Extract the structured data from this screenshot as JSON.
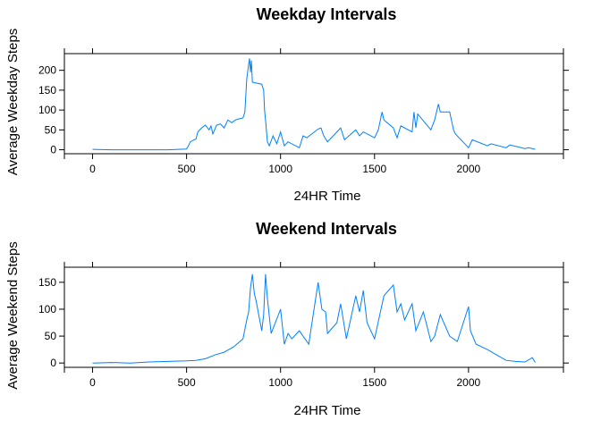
{
  "chart_data": [
    {
      "type": "line",
      "title": "Weekday Intervals",
      "xlabel": "24HR Time",
      "ylabel": "Average Weekday Steps",
      "xlim": [
        -150,
        2505
      ],
      "ylim": [
        -10,
        242
      ],
      "xticks": [
        0,
        500,
        1000,
        1500,
        2000
      ],
      "yticks": [
        0,
        50,
        100,
        150,
        200
      ],
      "line_color": "#0080ff",
      "grid": false,
      "series": [
        {
          "x": [
            0,
            100,
            200,
            300,
            400,
            500,
            510,
            520,
            540,
            550,
            560,
            580,
            600,
            620,
            630,
            640,
            660,
            680,
            700,
            720,
            740,
            760,
            780,
            800,
            810,
            820,
            830,
            835,
            840,
            845,
            850,
            900,
            910,
            915,
            920,
            930,
            940,
            960,
            980,
            1000,
            1020,
            1040,
            1100,
            1120,
            1140,
            1200,
            1215,
            1230,
            1250,
            1300,
            1320,
            1340,
            1400,
            1420,
            1440,
            1500,
            1520,
            1540,
            1550,
            1600,
            1620,
            1640,
            1700,
            1710,
            1720,
            1730,
            1800,
            1820,
            1840,
            1850,
            1900,
            1920,
            1930,
            2000,
            2020,
            2100,
            2120,
            2200,
            2220,
            2300,
            2320,
            2355
          ],
          "y": [
            1,
            0,
            0,
            0,
            0,
            2,
            10,
            20,
            25,
            27,
            45,
            55,
            62,
            50,
            60,
            40,
            62,
            65,
            55,
            75,
            68,
            75,
            78,
            80,
            95,
            178,
            215,
            230,
            195,
            225,
            170,
            165,
            150,
            100,
            75,
            20,
            10,
            35,
            15,
            45,
            10,
            20,
            5,
            35,
            30,
            52,
            55,
            35,
            20,
            45,
            55,
            25,
            50,
            35,
            45,
            30,
            50,
            95,
            75,
            55,
            30,
            60,
            45,
            95,
            55,
            90,
            50,
            75,
            115,
            95,
            95,
            50,
            40,
            5,
            25,
            10,
            15,
            5,
            12,
            3,
            5,
            1
          ]
        }
      ]
    },
    {
      "type": "line",
      "title": "Weekend Intervals",
      "xlabel": "24HR Time",
      "ylabel": "Average Weekend Steps",
      "xlim": [
        -150,
        2505
      ],
      "ylim": [
        -8,
        178
      ],
      "xticks": [
        0,
        500,
        1000,
        1500,
        2000
      ],
      "yticks": [
        0,
        50,
        100,
        150
      ],
      "line_color": "#0080ff",
      "grid": false,
      "series": [
        {
          "x": [
            0,
            100,
            200,
            300,
            400,
            500,
            550,
            600,
            650,
            700,
            750,
            800,
            820,
            830,
            840,
            850,
            860,
            870,
            900,
            910,
            920,
            930,
            950,
            1000,
            1020,
            1040,
            1060,
            1100,
            1150,
            1200,
            1210,
            1220,
            1240,
            1250,
            1300,
            1320,
            1350,
            1400,
            1420,
            1440,
            1460,
            1500,
            1550,
            1600,
            1620,
            1640,
            1660,
            1700,
            1720,
            1760,
            1800,
            1820,
            1850,
            1900,
            1940,
            2000,
            2010,
            2040,
            2100,
            2150,
            2200,
            2250,
            2300,
            2340,
            2355
          ],
          "y": [
            0,
            1,
            0,
            2,
            3,
            4,
            5,
            8,
            15,
            20,
            30,
            45,
            80,
            95,
            140,
            165,
            130,
            115,
            60,
            90,
            165,
            120,
            55,
            100,
            35,
            55,
            45,
            60,
            35,
            150,
            125,
            100,
            95,
            55,
            75,
            110,
            45,
            125,
            95,
            135,
            75,
            45,
            125,
            145,
            95,
            110,
            80,
            110,
            60,
            95,
            40,
            50,
            90,
            50,
            40,
            105,
            60,
            35,
            25,
            15,
            5,
            3,
            2,
            10,
            1
          ]
        }
      ]
    }
  ]
}
